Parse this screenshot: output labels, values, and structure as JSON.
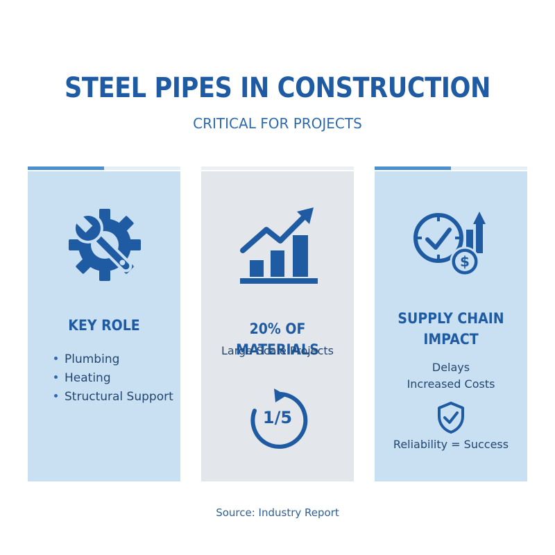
{
  "header": {
    "title": "STEEL PIPES IN CONSTRUCTION",
    "subtitle": "CRITICAL FOR PROJECTS"
  },
  "panels": [
    {
      "icon": "gear-wrench-icon",
      "heading": "KEY ROLE",
      "items": [
        "Plumbing",
        "Heating",
        "Structural Support"
      ]
    },
    {
      "icon": "bar-chart-growth-icon",
      "heading": "20% OF MATERIALS",
      "subheading": "Large-Scale Projects",
      "fraction_icon": "circular-arrow-icon",
      "fraction": "1/5"
    },
    {
      "icon": "clock-dollar-arrow-icon",
      "heading_line1": "SUPPLY CHAIN",
      "heading_line2": "IMPACT",
      "lines": [
        "Delays",
        "Increased Costs"
      ],
      "badge_icon": "shield-check-icon",
      "footer_line": "Reliability = Success"
    }
  ],
  "footer": {
    "source": "Source: Industry Report"
  },
  "colors": {
    "primary": "#1f5ba2",
    "panel_blue": "#c9e0f2",
    "panel_gray": "#e3e6ea",
    "accent_bar": "#4a8fcf"
  }
}
